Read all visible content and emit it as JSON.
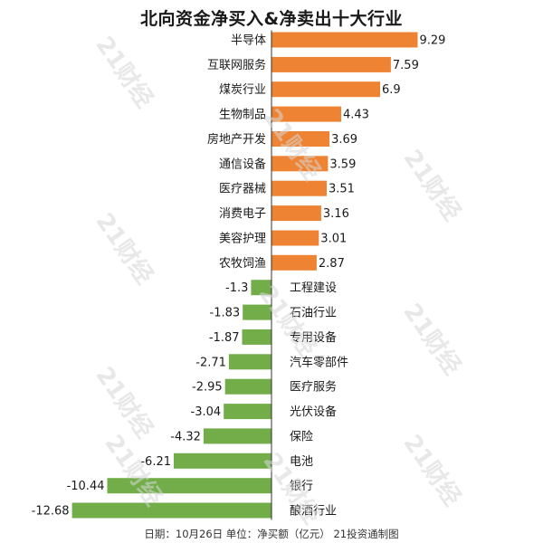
{
  "chart_data": {
    "type": "bar",
    "orientation": "horizontal",
    "title": "北向资金净买入&净卖出十大行业",
    "categories": [
      "半导体",
      "互联网服务",
      "煤炭行业",
      "生物制品",
      "房地产开发",
      "通信设备",
      "医疗器械",
      "消费电子",
      "美容护理",
      "农牧饲渔",
      "工程建设",
      "石油行业",
      "专用设备",
      "汽车零部件",
      "医疗服务",
      "光伏设备",
      "保险",
      "电池",
      "银行",
      "酿酒行业"
    ],
    "values": [
      9.29,
      7.59,
      6.9,
      4.43,
      3.69,
      3.59,
      3.51,
      3.16,
      3.01,
      2.87,
      -1.3,
      -1.83,
      -1.87,
      -2.71,
      -2.95,
      -3.04,
      -4.32,
      -6.21,
      -10.44,
      -12.68
    ],
    "value_labels": [
      "9.29",
      "7.59",
      "6.9",
      "4.43",
      "3.69",
      "3.59",
      "3.51",
      "3.16",
      "3.01",
      "2.87",
      "-1.3",
      "-1.83",
      "-1.87",
      "-2.71",
      "-2.95",
      "-3.04",
      "-4.32",
      "-6.21",
      "-10.44",
      "-12.68"
    ],
    "colors": {
      "positive": "#ee8433",
      "negative": "#72ad4a",
      "axis": "#333333"
    },
    "grid": false,
    "legend": "none"
  },
  "footer": "日期：10月26日  单位：净买额（亿元）  21投资通制图",
  "watermark": "21财经"
}
